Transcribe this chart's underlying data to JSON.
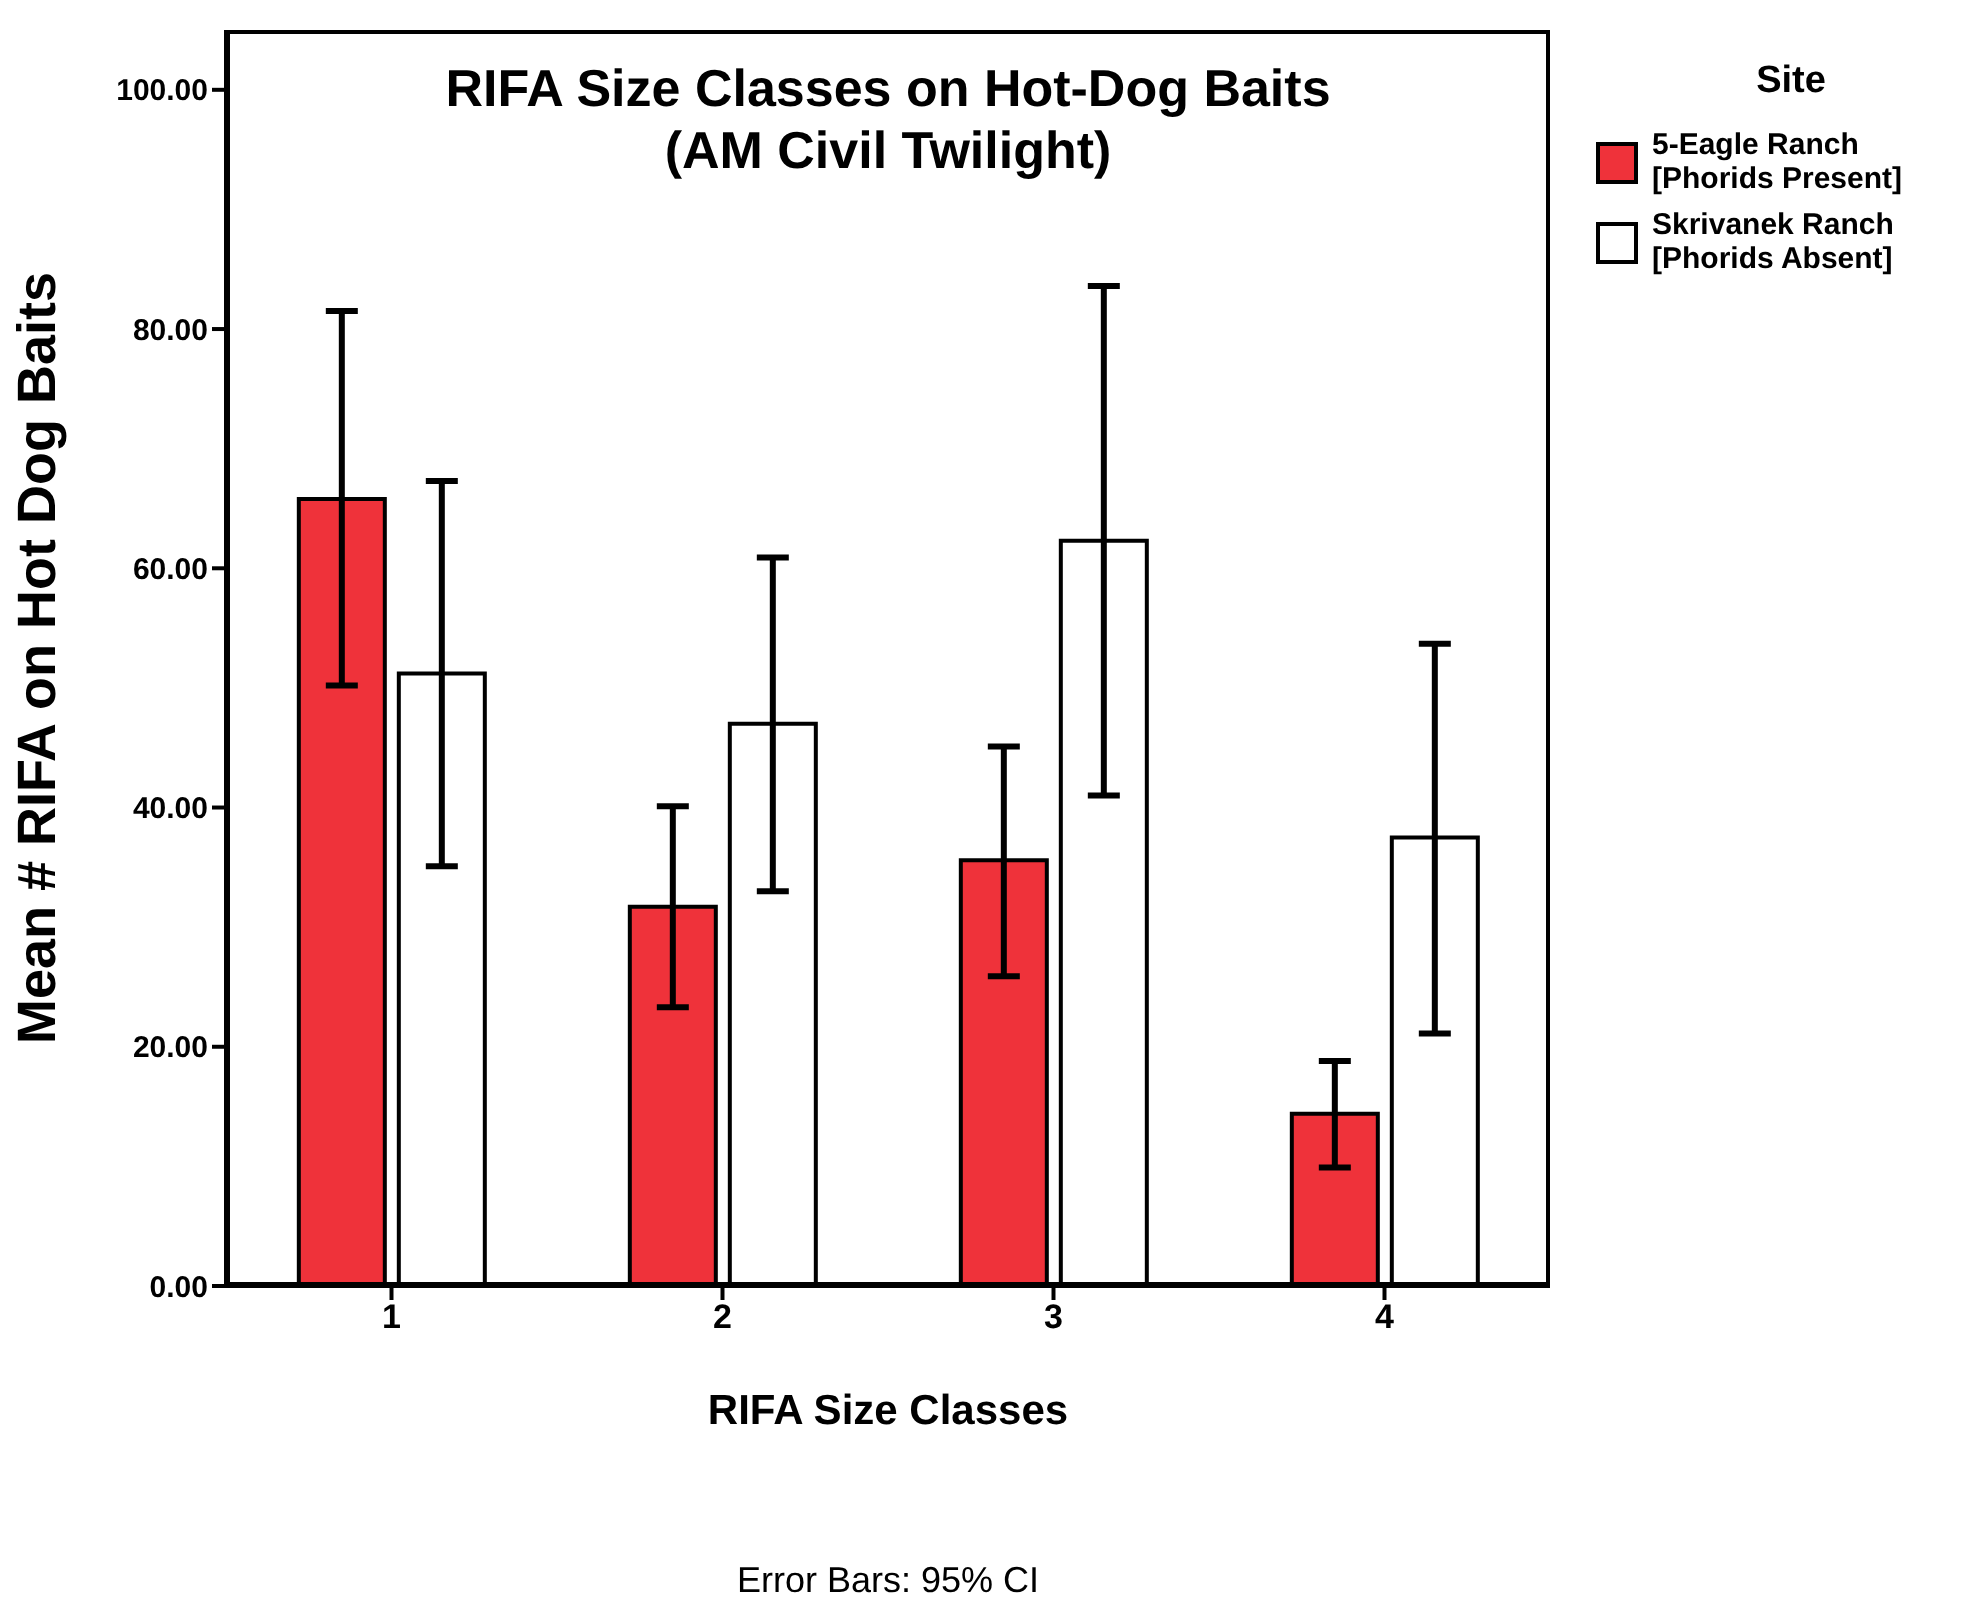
{
  "chart_data": {
    "type": "bar",
    "title": "RIFA Size Classes on Hot-Dog Baits\n(AM Civil Twilight)",
    "xlabel": "RIFA Size Classes",
    "ylabel": "Mean # RIFA on Hot Dog Baits",
    "legend_title": "Site",
    "annotations": [
      "Error Bars: 95% CI"
    ],
    "categories": [
      "1",
      "2",
      "3",
      "4"
    ],
    "series": [
      {
        "name": "5-Eagle Ranch\n[Phorids Present]",
        "color": "#ef323a",
        "values": [
          65.8,
          31.7,
          35.6,
          14.4
        ],
        "errors": [
          [
            50.2,
            81.5
          ],
          [
            23.3,
            40.1
          ],
          [
            25.9,
            45.1
          ],
          [
            9.9,
            18.8
          ]
        ]
      },
      {
        "name": "Skrivanek Ranch\n[Phorids Absent]",
        "color": "#ffffff",
        "values": [
          51.2,
          47.0,
          62.3,
          37.5
        ],
        "errors": [
          [
            35.1,
            67.3
          ],
          [
            33.0,
            60.9
          ],
          [
            41.0,
            83.6
          ],
          [
            21.1,
            53.7
          ]
        ]
      }
    ],
    "ylim": [
      0,
      105
    ],
    "yticks": [
      {
        "value": 0,
        "label": "0.00"
      },
      {
        "value": 20,
        "label": "20.00"
      },
      {
        "value": 40,
        "label": "40.00"
      },
      {
        "value": 60,
        "label": "60.00"
      },
      {
        "value": 80,
        "label": "80.00"
      },
      {
        "value": 100,
        "label": "100.00"
      }
    ],
    "grid": false,
    "legend": "top right"
  }
}
